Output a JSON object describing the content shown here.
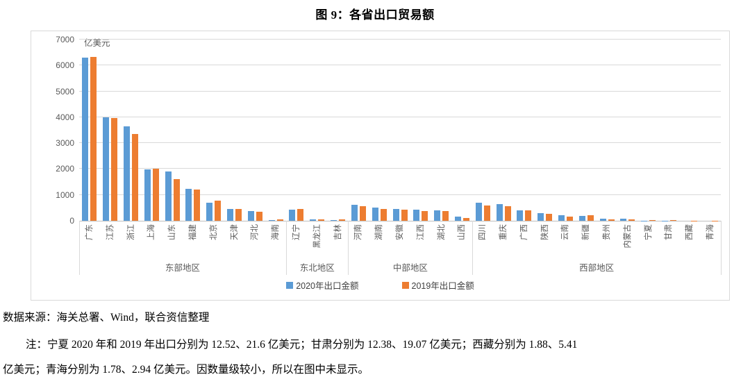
{
  "title": "图 9：各省出口贸易额",
  "source_line": "数据来源：海关总署、Wind，联合资信整理",
  "note": {
    "line1": "注：宁夏 2020 年和 2019 年出口分别为 12.52、21.6 亿美元；甘肃分别为 12.38、19.07 亿美元；西藏分别为 1.88、5.41",
    "line2": "亿美元；青海分别为 1.78、2.94 亿美元。因数量级较小，所以在图中未显示。"
  },
  "chart_data": {
    "type": "bar",
    "unit_label": "亿美元",
    "ylim": [
      0,
      7000
    ],
    "ytick_step": 1000,
    "yticks": [
      0,
      1000,
      2000,
      3000,
      4000,
      5000,
      6000,
      7000
    ],
    "grid": true,
    "legend_position": "bottom",
    "colors": {
      "series_2020": "#5B9BD5",
      "series_2019": "#ED7D31",
      "gridline": "#D9D9D9",
      "axis_line": "#BFBFBF",
      "tick_label": "#595959"
    },
    "categories": [
      "广东",
      "江苏",
      "浙江",
      "上海",
      "山东",
      "福建",
      "北京",
      "天津",
      "河北",
      "海南",
      "辽宁",
      "黑龙江",
      "吉林",
      "河南",
      "湖南",
      "安徽",
      "江西",
      "湖北",
      "山西",
      "四川",
      "重庆",
      "广西",
      "陕西",
      "云南",
      "新疆",
      "贵州",
      "内蒙古",
      "宁夏",
      "甘肃",
      "西藏",
      "青海"
    ],
    "groups": [
      {
        "label": "东部地区",
        "count": 10
      },
      {
        "label": "东北地区",
        "count": 3
      },
      {
        "label": "中部地区",
        "count": 6
      },
      {
        "label": "西部地区",
        "count": 12
      }
    ],
    "series": [
      {
        "name": "2020年出口金额",
        "color": "#5B9BD5",
        "values": [
          6300,
          3990,
          3650,
          1990,
          1900,
          1235,
          690,
          455,
          365,
          38,
          420,
          58,
          40,
          615,
          508,
          465,
          420,
          402,
          155,
          700,
          655,
          405,
          290,
          207,
          175,
          70,
          80,
          12.52,
          12.38,
          1.88,
          1.78
        ]
      },
      {
        "name": "2019年出口金额",
        "color": "#ED7D31",
        "values": [
          6330,
          3960,
          3340,
          2005,
          1620,
          1215,
          765,
          450,
          355,
          66,
          465,
          62,
          45,
          556,
          456,
          430,
          386,
          368,
          115,
          600,
          560,
          390,
          270,
          161,
          210,
          65,
          65,
          21.6,
          19.07,
          5.41,
          2.94
        ]
      }
    ]
  }
}
